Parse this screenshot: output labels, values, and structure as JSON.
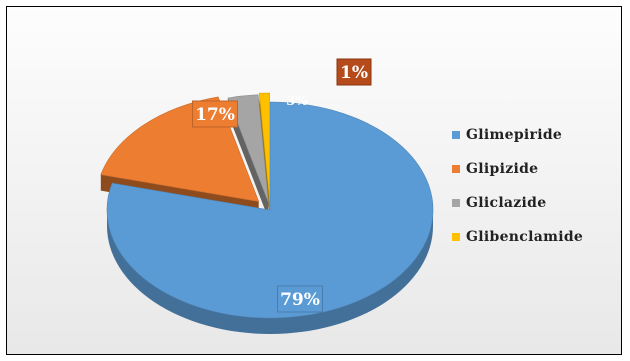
{
  "chart_data": {
    "type": "pie",
    "categories": [
      "Glimepiride",
      "Glipizide",
      "Gliclazide",
      "Glibenclamide"
    ],
    "values": [
      79,
      17,
      3,
      1
    ],
    "data_labels": [
      "79%",
      "17%",
      "3%",
      "1%"
    ],
    "colors": [
      "#5b9bd5",
      "#ed7d31",
      "#a5a5a5",
      "#ffc000"
    ],
    "title": "",
    "legend_position": "right",
    "style": "3d-exploded"
  }
}
